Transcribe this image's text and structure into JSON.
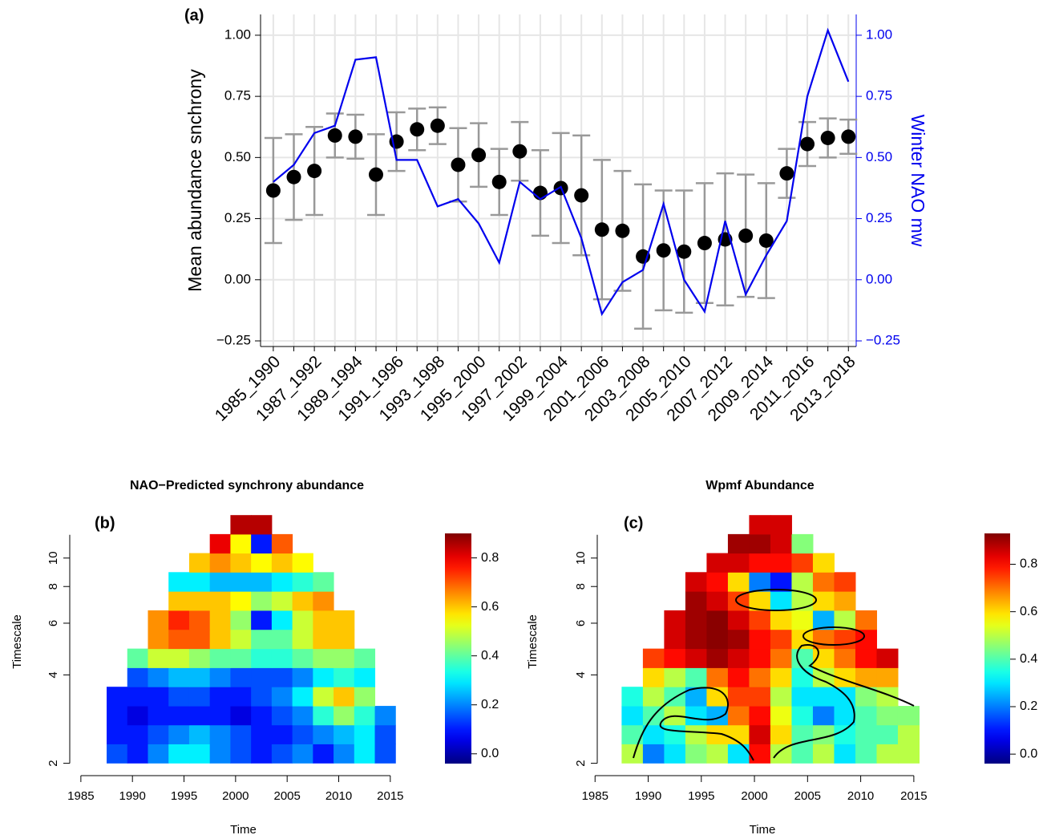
{
  "chart_data": [
    {
      "type": "errorbar",
      "panel_label": "(a)",
      "ylabel": "Mean abundance snchrony",
      "y2label": "Winter NAO mw",
      "categories": [
        "1985_1990",
        null,
        "1987_1992",
        null,
        "1989_1994",
        null,
        "1991_1996",
        null,
        "1993_1998",
        null,
        "1995_2000",
        null,
        "1997_2002",
        null,
        "1999_2004",
        null,
        "2001_2006",
        null,
        "2003_2008",
        null,
        "2005_2010",
        null,
        "2007_2012",
        null,
        "2009_2014",
        null,
        "2011_2016",
        null,
        "2013_2018"
      ],
      "series": [
        {
          "color": "#000000",
          "error_color": "#999999",
          "values": [
            0.365,
            0.42,
            0.445,
            0.59,
            0.585,
            0.43,
            0.565,
            0.615,
            0.63,
            0.47,
            0.51,
            0.4,
            0.525,
            0.355,
            0.375,
            0.345,
            0.205,
            0.2,
            0.095,
            0.12,
            0.115,
            0.15,
            0.165,
            0.18,
            0.16,
            0.435,
            0.555,
            0.58,
            0.585
          ],
          "errors": [
            0.215,
            0.175,
            0.18,
            0.09,
            0.09,
            0.165,
            0.12,
            0.085,
            0.075,
            0.15,
            0.13,
            0.135,
            0.12,
            0.175,
            0.225,
            0.245,
            0.285,
            0.245,
            0.295,
            0.245,
            0.25,
            0.245,
            0.27,
            0.25,
            0.235,
            0.1,
            0.09,
            0.08,
            0.07
          ]
        },
        {
          "color": "#0000ee",
          "axis": "y2",
          "values": [
            0.4,
            0.47,
            0.6,
            0.63,
            0.9,
            0.91,
            0.49,
            0.49,
            0.3,
            0.33,
            0.23,
            0.07,
            0.4,
            0.33,
            0.38,
            0.17,
            -0.14,
            -0.01,
            0.04,
            0.31,
            0.0,
            -0.13,
            0.24,
            -0.06,
            0.1,
            0.24,
            0.75,
            1.02,
            0.81
          ]
        }
      ],
      "ylim": [
        -0.273,
        1.085
      ],
      "yticks": [
        {
          "value": -0.25,
          "label": "−0.25"
        },
        {
          "value": 0,
          "label": "0.00"
        },
        {
          "value": 0.25,
          "label": "0.25"
        },
        {
          "value": 0.5,
          "label": "0.50"
        },
        {
          "value": 0.75,
          "label": "0.75"
        },
        {
          "value": 1,
          "label": "1.00"
        }
      ],
      "y2lim": [
        -0.273,
        1.085
      ],
      "y2ticks": [
        {
          "value": -0.25,
          "label": "−0.25"
        },
        {
          "value": 0,
          "label": "0.00"
        },
        {
          "value": 0.25,
          "label": "0.25"
        },
        {
          "value": 0.5,
          "label": "0.50"
        },
        {
          "value": 0.75,
          "label": "0.75"
        },
        {
          "value": 1,
          "label": "1.00"
        }
      ],
      "grid": true
    },
    {
      "type": "heatmap",
      "title": "NAO−Predicted synchrony abundance",
      "panel_label": "(b)",
      "xlabel": "Time",
      "ylabel": "Timescale",
      "x": [
        1988.5,
        1990.5,
        1992.5,
        1994.5,
        1996.5,
        1998.5,
        2000.5,
        2002.5,
        2004.5,
        2006.5,
        2008.5,
        2010.5,
        2012.5,
        2014.5
      ],
      "y": [
        2.16,
        2.51,
        2.91,
        3.38,
        3.93,
        4.56,
        5.3,
        6.16,
        7.15,
        8.31,
        9.65,
        11.2,
        13.0
      ],
      "z": [
        [
          0.15,
          0.1,
          0.2,
          0.3,
          0.3,
          0.2,
          0.15,
          0.1,
          0.15,
          0.2,
          0.1,
          0.2,
          0.3,
          0.15
        ],
        [
          0.1,
          0.1,
          0.15,
          0.2,
          0.25,
          0.2,
          0.15,
          0.1,
          0.1,
          0.15,
          0.2,
          0.25,
          0.3,
          0.15
        ],
        [
          0.1,
          0.05,
          0.1,
          0.1,
          0.1,
          0.1,
          0.05,
          0.1,
          0.15,
          0.2,
          0.35,
          0.45,
          0.35,
          0.2
        ],
        [
          0.1,
          0.1,
          0.1,
          0.15,
          0.15,
          0.1,
          0.1,
          0.15,
          0.2,
          0.3,
          0.5,
          0.6,
          0.45,
          null
        ],
        [
          null,
          0.15,
          0.2,
          0.25,
          0.25,
          0.2,
          0.15,
          0.15,
          0.15,
          0.2,
          0.3,
          0.35,
          0.3,
          null
        ],
        [
          null,
          0.4,
          0.5,
          0.5,
          0.45,
          0.4,
          0.4,
          0.35,
          0.35,
          0.4,
          0.45,
          0.45,
          0.4,
          null
        ],
        [
          null,
          null,
          0.65,
          0.7,
          0.7,
          0.6,
          0.5,
          0.4,
          0.4,
          0.5,
          0.6,
          0.6,
          null,
          null
        ],
        [
          null,
          null,
          0.65,
          0.75,
          0.7,
          0.6,
          0.45,
          0.1,
          0.3,
          0.5,
          0.6,
          0.6,
          null,
          null
        ],
        [
          null,
          null,
          null,
          0.6,
          0.6,
          0.6,
          0.55,
          0.45,
          0.5,
          0.6,
          0.65,
          null,
          null,
          null
        ],
        [
          null,
          null,
          null,
          0.3,
          0.3,
          0.25,
          0.25,
          0.25,
          0.3,
          0.35,
          0.4,
          null,
          null,
          null
        ],
        [
          null,
          null,
          null,
          null,
          0.6,
          0.65,
          0.6,
          0.55,
          0.6,
          0.55,
          null,
          null,
          null,
          null
        ],
        [
          null,
          null,
          null,
          null,
          null,
          0.8,
          0.55,
          0.1,
          0.7,
          null,
          null,
          null,
          null,
          null
        ],
        [
          null,
          null,
          null,
          null,
          null,
          null,
          0.85,
          0.85,
          null,
          null,
          null,
          null,
          null,
          null
        ]
      ],
      "xlim": [
        1984,
        2017.5
      ],
      "xticks": [
        1985,
        1990,
        1995,
        2000,
        2005,
        2010,
        2015
      ],
      "ylim": [
        1.97,
        14.2
      ],
      "ylog": true,
      "yticks": [
        2,
        4,
        6,
        8,
        10
      ],
      "zlim": [
        -0.04,
        0.9
      ],
      "zticks": [
        {
          "value": 0,
          "label": "0.0"
        },
        0.2,
        0.4,
        0.6,
        0.8
      ],
      "colormap": "jet"
    },
    {
      "type": "heatmap",
      "title": "Wpmf Abundance",
      "panel_label": "(c)",
      "xlabel": "Time",
      "ylabel": "Timescale",
      "x": [
        1988.5,
        1990.5,
        1992.5,
        1994.5,
        1996.5,
        1998.5,
        2000.5,
        2002.5,
        2004.5,
        2006.5,
        2008.5,
        2010.5,
        2012.5,
        2014.5
      ],
      "y": [
        2.16,
        2.51,
        2.91,
        3.38,
        3.93,
        4.56,
        5.3,
        6.16,
        7.15,
        8.31,
        9.65,
        11.2,
        13.0
      ],
      "z": [
        [
          0.5,
          0.2,
          0.3,
          0.45,
          0.5,
          0.3,
          0.8,
          0.5,
          0.4,
          0.5,
          0.3,
          0.4,
          0.5,
          0.5
        ],
        [
          0.4,
          0.3,
          0.35,
          0.5,
          0.6,
          0.6,
          0.85,
          0.6,
          0.4,
          0.45,
          0.35,
          0.4,
          0.4,
          0.5
        ],
        [
          0.3,
          0.4,
          0.5,
          0.3,
          0.25,
          0.7,
          0.8,
          0.55,
          0.35,
          0.2,
          0.3,
          0.4,
          0.45,
          0.45
        ],
        [
          0.35,
          0.5,
          0.4,
          0.25,
          0.6,
          0.75,
          0.75,
          0.5,
          0.3,
          0.3,
          0.3,
          0.45,
          0.5,
          null
        ],
        [
          null,
          0.6,
          0.5,
          0.4,
          0.7,
          0.8,
          0.7,
          0.6,
          0.35,
          0.5,
          0.6,
          0.65,
          0.65,
          null
        ],
        [
          null,
          0.75,
          0.8,
          0.85,
          0.9,
          0.85,
          0.8,
          0.7,
          0.4,
          0.6,
          0.7,
          0.8,
          0.85,
          null
        ],
        [
          null,
          null,
          0.85,
          0.9,
          0.92,
          0.9,
          0.8,
          0.75,
          0.6,
          0.7,
          0.75,
          0.8,
          null,
          null
        ],
        [
          null,
          null,
          0.85,
          0.9,
          0.92,
          0.85,
          0.75,
          0.6,
          0.55,
          0.25,
          0.5,
          0.7,
          null,
          null
        ],
        [
          null,
          null,
          null,
          0.9,
          0.85,
          0.75,
          0.6,
          0.3,
          0.5,
          0.6,
          0.65,
          null,
          null,
          null
        ],
        [
          null,
          null,
          null,
          0.85,
          0.8,
          0.6,
          0.2,
          0.1,
          0.5,
          0.7,
          0.75,
          null,
          null,
          null
        ],
        [
          null,
          null,
          null,
          null,
          0.85,
          0.85,
          0.8,
          0.8,
          0.75,
          0.6,
          null,
          null,
          null,
          null
        ],
        [
          null,
          null,
          null,
          null,
          null,
          0.9,
          0.9,
          0.85,
          0.45,
          null,
          null,
          null,
          null,
          null
        ],
        [
          null,
          null,
          null,
          null,
          null,
          null,
          0.85,
          0.85,
          null,
          null,
          null,
          null,
          null,
          null
        ]
      ],
      "xlim": [
        1984,
        2017.5
      ],
      "xticks": [
        1985,
        1990,
        1995,
        2000,
        2005,
        2010,
        2015
      ],
      "ylim": [
        1.97,
        14.2
      ],
      "ylog": true,
      "yticks": [
        2,
        4,
        6,
        8,
        10
      ],
      "zlim": [
        -0.04,
        0.93
      ],
      "zticks": [
        {
          "value": 0,
          "label": "0.0"
        },
        0.2,
        0.4,
        0.6,
        0.8
      ],
      "colormap": "jet"
    }
  ]
}
